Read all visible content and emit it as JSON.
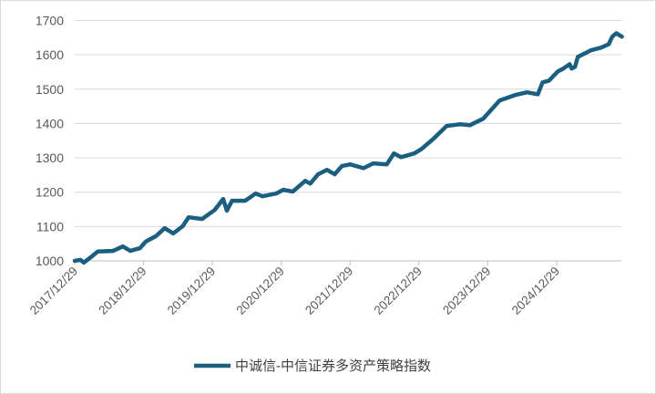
{
  "chart_data": {
    "type": "line",
    "title": "",
    "xlabel": "",
    "ylabel": "",
    "ylim": [
      1000,
      1700
    ],
    "yticks": [
      "1000",
      "1100",
      "1200",
      "1300",
      "1400",
      "1500",
      "1600",
      "1700"
    ],
    "xticks": [
      "2017/12/29",
      "2018/12/29",
      "2019/12/29",
      "2020/12/29",
      "2021/12/29",
      "2022/12/29",
      "2023/12/29",
      "2024/12/29"
    ],
    "grid": "horizontal",
    "legend": "bottom",
    "color": "#1a5e80",
    "series": [
      {
        "name": "中诚信-中信证券多资产策略指数",
        "points": [
          [
            "2017-12-29",
            1000
          ],
          [
            "2018-01-29",
            1003
          ],
          [
            "2018-02-15",
            995
          ],
          [
            "2018-03-25",
            1011
          ],
          [
            "2018-05-01",
            1027
          ],
          [
            "2018-07-20",
            1029
          ],
          [
            "2018-09-10",
            1042
          ],
          [
            "2018-10-20",
            1029
          ],
          [
            "2018-12-10",
            1037
          ],
          [
            "2019-01-10",
            1056
          ],
          [
            "2019-03-05",
            1072
          ],
          [
            "2019-04-20",
            1095
          ],
          [
            "2019-06-05",
            1080
          ],
          [
            "2019-07-25",
            1101
          ],
          [
            "2019-08-25",
            1127
          ],
          [
            "2019-11-05",
            1122
          ],
          [
            "2020-01-10",
            1148
          ],
          [
            "2020-02-25",
            1180
          ],
          [
            "2020-03-15",
            1146
          ],
          [
            "2020-04-12",
            1175
          ],
          [
            "2020-06-20",
            1175
          ],
          [
            "2020-08-15",
            1196
          ],
          [
            "2020-09-20",
            1188
          ],
          [
            "2020-12-01",
            1196
          ],
          [
            "2021-01-08",
            1207
          ],
          [
            "2021-02-28",
            1202
          ],
          [
            "2021-05-05",
            1233
          ],
          [
            "2021-06-01",
            1225
          ],
          [
            "2021-07-12",
            1252
          ],
          [
            "2021-08-28",
            1265
          ],
          [
            "2021-10-08",
            1252
          ],
          [
            "2021-11-15",
            1276
          ],
          [
            "2021-12-29",
            1281
          ],
          [
            "2022-03-10",
            1270
          ],
          [
            "2022-05-01",
            1284
          ],
          [
            "2022-07-12",
            1281
          ],
          [
            "2022-08-18",
            1313
          ],
          [
            "2022-09-25",
            1302
          ],
          [
            "2022-12-05",
            1313
          ],
          [
            "2023-01-12",
            1326
          ],
          [
            "2023-03-15",
            1355
          ],
          [
            "2023-05-25",
            1393
          ],
          [
            "2023-08-05",
            1398
          ],
          [
            "2023-09-25",
            1395
          ],
          [
            "2023-12-05",
            1414
          ],
          [
            "2024-03-01",
            1467
          ],
          [
            "2024-05-22",
            1483
          ],
          [
            "2024-07-25",
            1491
          ],
          [
            "2024-09-20",
            1485
          ],
          [
            "2024-10-15",
            1520
          ],
          [
            "2024-11-18",
            1525
          ],
          [
            "2025-01-05",
            1552
          ],
          [
            "2025-02-02",
            1560
          ],
          [
            "2025-03-08",
            1573
          ],
          [
            "2025-03-18",
            1560
          ],
          [
            "2025-04-05",
            1565
          ],
          [
            "2025-04-20",
            1594
          ],
          [
            "2025-06-28",
            1613
          ],
          [
            "2025-08-22",
            1621
          ],
          [
            "2025-10-01",
            1631
          ],
          [
            "2025-10-20",
            1653
          ],
          [
            "2025-11-10",
            1663
          ],
          [
            "2025-12-10",
            1653
          ]
        ]
      }
    ]
  }
}
